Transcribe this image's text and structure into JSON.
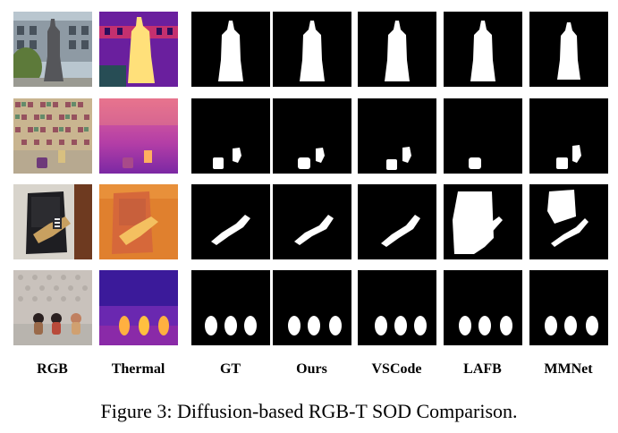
{
  "figure": {
    "columns": [
      "RGB",
      "Thermal",
      "GT",
      "Ours",
      "VSCode",
      "LAFB",
      "MMNet"
    ],
    "caption": "Figure 3: Diffusion-based RGB-T SOD Comparison.",
    "rows": [
      {
        "scene": "statue"
      },
      {
        "scene": "cups-and-toy"
      },
      {
        "scene": "chair-teddy"
      },
      {
        "scene": "three-figurines"
      }
    ]
  }
}
